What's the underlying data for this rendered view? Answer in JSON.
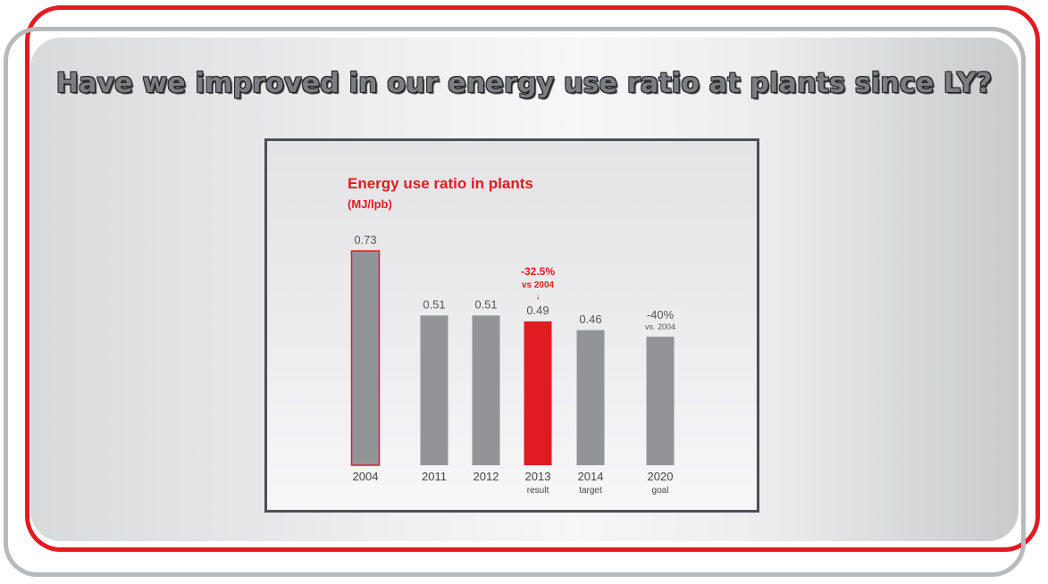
{
  "slide": {
    "title": "Have we improved in our energy use ratio at plants since LY?"
  },
  "colors": {
    "accent": "#e21b23",
    "bar": "#929497",
    "frame_gray": "#b8b9bd"
  },
  "chart_data": {
    "type": "bar",
    "title": "Energy use ratio in plants",
    "subtitle": "(MJ/lpb)",
    "categories": [
      "2004",
      "2011",
      "2012",
      "2013",
      "2014",
      "2020"
    ],
    "category_sublabels": [
      "",
      "",
      "",
      "result",
      "target",
      "goal"
    ],
    "values": [
      0.73,
      0.51,
      0.51,
      0.49,
      0.46,
      0.438
    ],
    "value_labels": [
      "0.73",
      "0.51",
      "0.51",
      "0.49",
      "0.46",
      ""
    ],
    "highlight_index": 3,
    "outlined_index": 0,
    "annotations": {
      "highlight": {
        "line1": "-32.5%",
        "line2": "vs 2004",
        "arrow": "↓"
      },
      "goal": {
        "line1": "-40%",
        "line2": "vs. 2004"
      }
    },
    "ylim": [
      0,
      0.73
    ],
    "grid": false
  }
}
